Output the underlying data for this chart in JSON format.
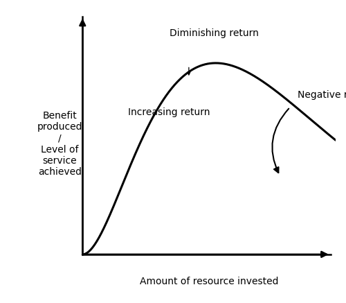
{
  "background_color": "#ffffff",
  "curve_color": "#000000",
  "curve_linewidth": 2.2,
  "axis_color": "#000000",
  "xlabel": "Amount of resource invested",
  "ylabel": "Benefit\nproduced\n/\nLevel of\nservice\nachieved",
  "xlabel_fontsize": 10,
  "ylabel_fontsize": 10,
  "label_increasing": "Increasing return",
  "label_diminishing": "Diminishing return",
  "label_negative": "Negative return",
  "annotation_fontsize": 10,
  "xlim": [
    0,
    10
  ],
  "ylim": [
    0,
    10
  ]
}
